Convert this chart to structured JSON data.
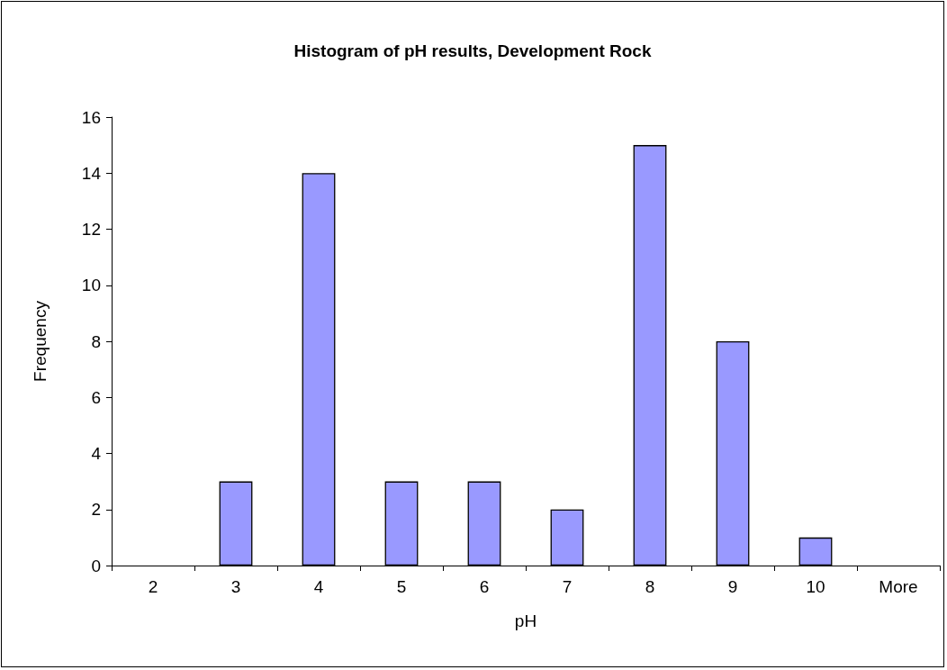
{
  "chart_data": {
    "type": "bar",
    "title": "Histogram of pH results, Development Rock",
    "xlabel": "pH",
    "ylabel": "Frequency",
    "categories": [
      "2",
      "3",
      "4",
      "5",
      "6",
      "7",
      "8",
      "9",
      "10",
      "More"
    ],
    "values": [
      0,
      3,
      14,
      3,
      3,
      2,
      15,
      8,
      1,
      0
    ],
    "color": "#9999ff",
    "ylim": [
      0,
      16
    ],
    "yticks": [
      0,
      2,
      4,
      6,
      8,
      10,
      12,
      14,
      16
    ]
  }
}
